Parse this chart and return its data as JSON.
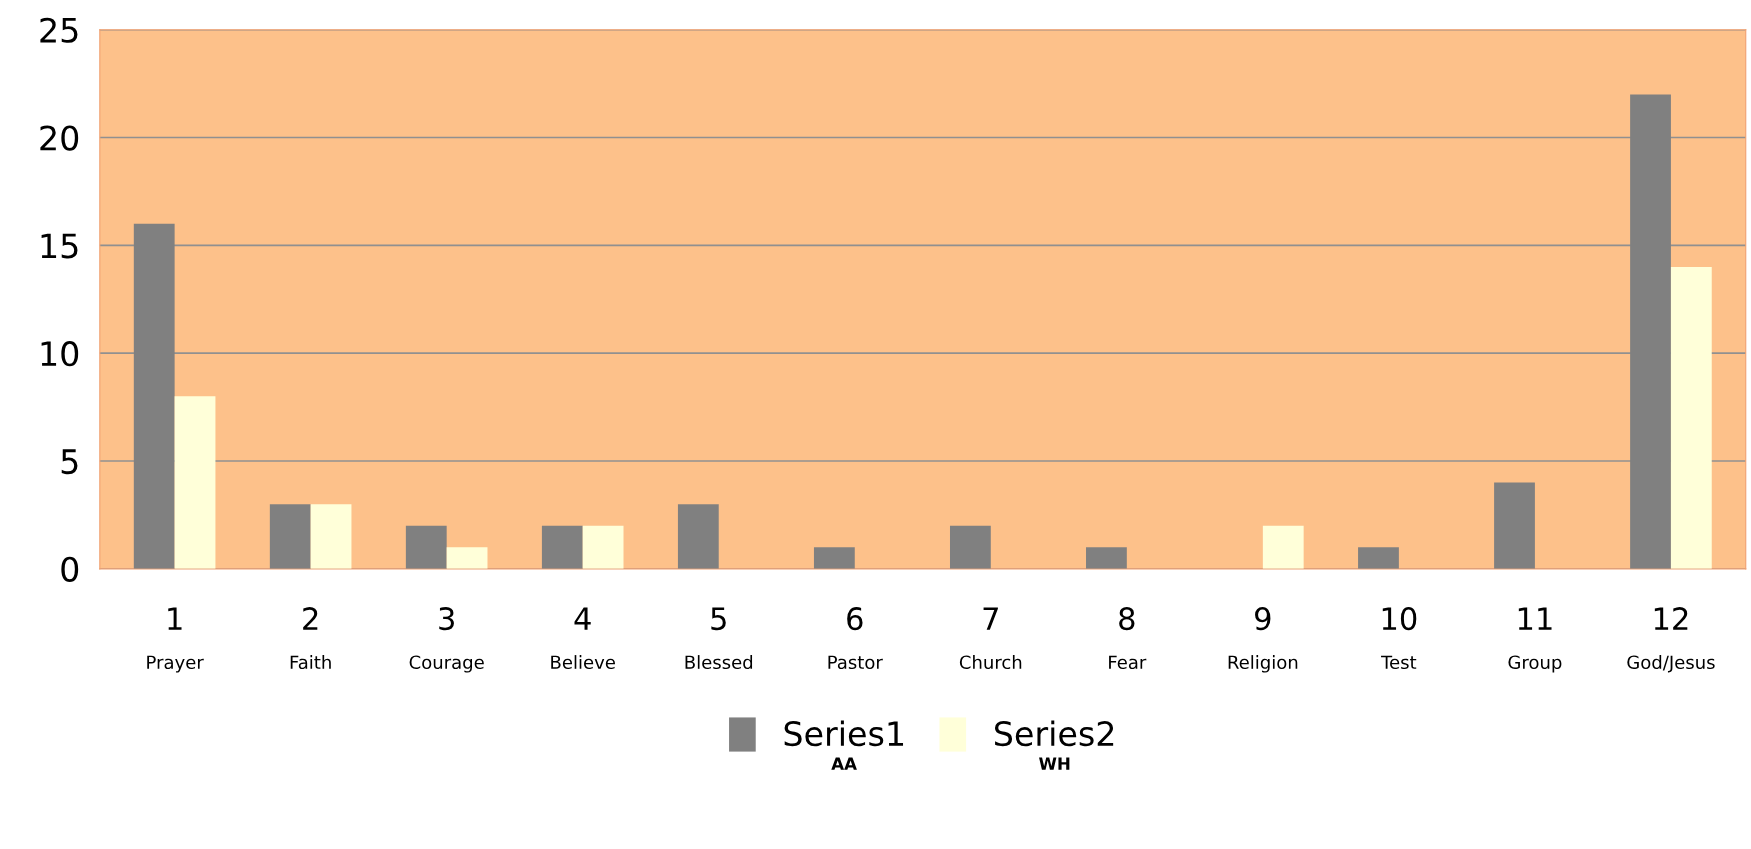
{
  "chart_data": {
    "type": "bar",
    "categories": [
      "1\nPrayer",
      "2\nFaith",
      "3\nCourage",
      "4\nBelieve",
      "5\nBlessed",
      "6\nPastor",
      "7\nChurch",
      "8\nFear",
      "9\nReligion",
      "10\nTest",
      "11\nGroup",
      "12\nGod/Jesus"
    ],
    "series": [
      {
        "name": "Series1",
        "color": "#808080",
        "values": [
          16,
          3,
          2,
          2,
          3,
          1,
          2,
          1,
          0,
          1,
          4,
          22
        ]
      },
      {
        "name": "Series2",
        "color": "#ffffd9",
        "values": [
          8,
          3,
          1,
          2,
          0,
          0,
          0,
          0,
          2,
          0,
          0,
          14
        ]
      }
    ],
    "ylim": [
      0,
      25
    ],
    "yticks": [
      0,
      5,
      10,
      15,
      20,
      25
    ],
    "grid": "y",
    "legend": "bottom",
    "annotations": [
      "AA",
      "WH"
    ]
  }
}
